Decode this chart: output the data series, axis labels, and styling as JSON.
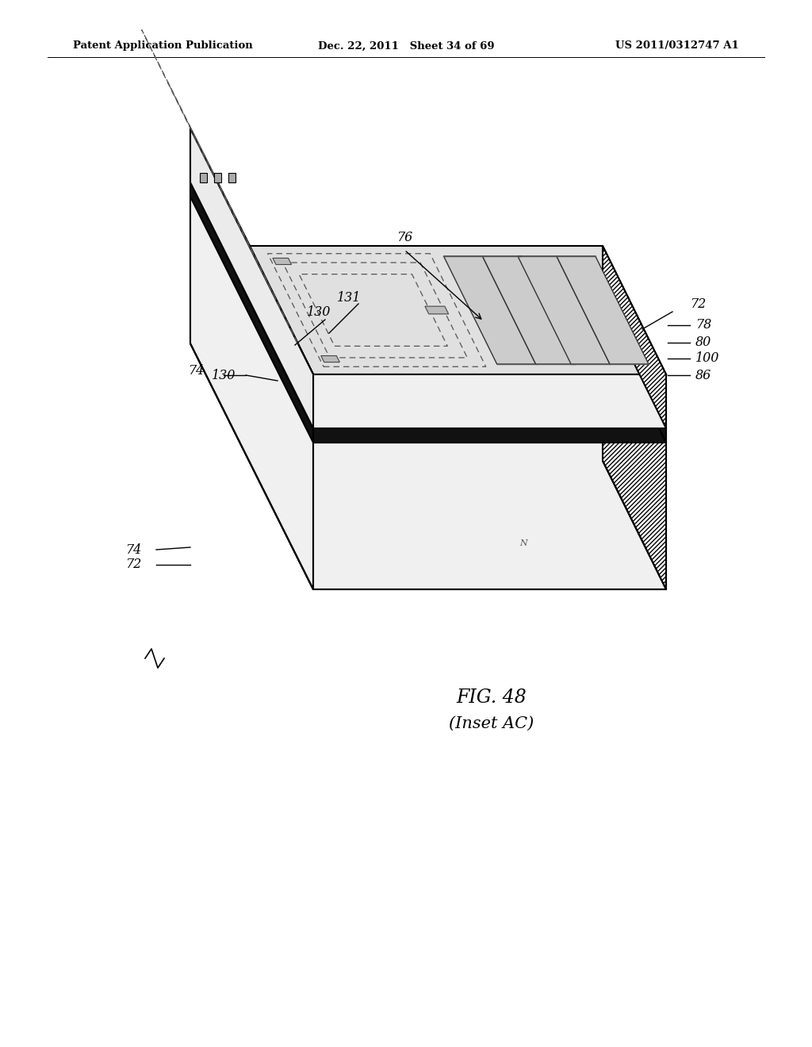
{
  "header_left": "Patent Application Publication",
  "header_center": "Dec. 22, 2011   Sheet 34 of 69",
  "header_right": "US 2011/0312747 A1",
  "fig_label": "FIG. 48",
  "fig_sublabel": "(Inset AC)",
  "bg": "#ffffff",
  "lc": "#000000"
}
